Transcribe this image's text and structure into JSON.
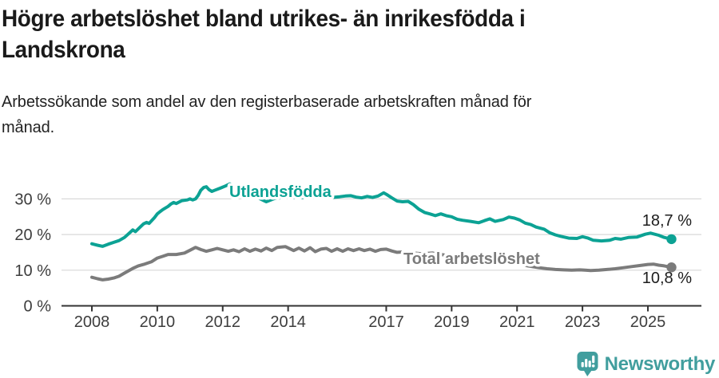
{
  "header": {
    "title_lines": [
      "Högre arbetslöshet bland utrikes- än inrikesfödda i",
      "Landskrona"
    ],
    "subtitle_lines": [
      "Arbetssökande som andel av den registerbaserade arbetskraften månad för",
      "månad."
    ]
  },
  "footer": {
    "brand": "Newsworthy",
    "logo_icon": "bar-chart-speech-bubble-icon",
    "brand_color": "#419e9e"
  },
  "colors": {
    "grid": "#d9d9d9",
    "axis": "#333333",
    "tick_text": "#3d3d3d",
    "value_label_text": "#1c1c1c",
    "title_text": "#1a1a1a"
  },
  "chart_data": {
    "type": "line",
    "title": "Högre arbetslöshet bland utrikes- än inrikesfödda i Landskrona",
    "subtitle": "Arbetssökande som andel av den registerbaserade arbetskraften månad för månad.",
    "x_unit": "decimal_year",
    "x_range": [
      2007.1,
      2026.6
    ],
    "ylim": [
      0,
      36
    ],
    "grid": "horizontal",
    "legend": "inline-labels",
    "y_ticks": [
      {
        "value": 0,
        "label": "0 %"
      },
      {
        "value": 10,
        "label": "10 %"
      },
      {
        "value": 20,
        "label": "20 %"
      },
      {
        "value": 30,
        "label": "30 %"
      }
    ],
    "x_ticks": [
      {
        "value": 2008,
        "label": "2008"
      },
      {
        "value": 2010,
        "label": "2010"
      },
      {
        "value": 2012,
        "label": "2012"
      },
      {
        "value": 2014,
        "label": "2014"
      },
      {
        "value": 2017,
        "label": "2017"
      },
      {
        "value": 2019,
        "label": "2019"
      },
      {
        "value": 2021,
        "label": "2021"
      },
      {
        "value": 2023,
        "label": "2023"
      },
      {
        "value": 2025,
        "label": "2025"
      }
    ],
    "series": [
      {
        "name": "Utlandsfödda",
        "color": "#0ca294",
        "end_value": 18.7,
        "end_value_label": "18,7 %",
        "points": [
          [
            2008.0,
            17.4
          ],
          [
            2008.08,
            17.2
          ],
          [
            2008.17,
            17.0
          ],
          [
            2008.33,
            16.7
          ],
          [
            2008.5,
            17.3
          ],
          [
            2008.67,
            17.8
          ],
          [
            2008.83,
            18.3
          ],
          [
            2009.0,
            19.2
          ],
          [
            2009.17,
            20.6
          ],
          [
            2009.25,
            21.3
          ],
          [
            2009.33,
            20.8
          ],
          [
            2009.5,
            22.3
          ],
          [
            2009.58,
            23.0
          ],
          [
            2009.67,
            23.4
          ],
          [
            2009.75,
            23.1
          ],
          [
            2009.92,
            24.8
          ],
          [
            2010.0,
            25.8
          ],
          [
            2010.08,
            26.4
          ],
          [
            2010.17,
            27.0
          ],
          [
            2010.33,
            27.9
          ],
          [
            2010.42,
            28.6
          ],
          [
            2010.5,
            29.0
          ],
          [
            2010.58,
            28.7
          ],
          [
            2010.75,
            29.5
          ],
          [
            2010.92,
            29.7
          ],
          [
            2011.0,
            30.0
          ],
          [
            2011.08,
            29.7
          ],
          [
            2011.17,
            30.0
          ],
          [
            2011.25,
            31.0
          ],
          [
            2011.33,
            32.4
          ],
          [
            2011.42,
            33.2
          ],
          [
            2011.5,
            33.4
          ],
          [
            2011.58,
            32.6
          ],
          [
            2011.67,
            32.1
          ],
          [
            2011.75,
            32.4
          ],
          [
            2011.92,
            33.0
          ],
          [
            2012.08,
            33.6
          ],
          [
            2012.22,
            34.2
          ],
          [
            2012.33,
            33.5
          ],
          [
            2012.42,
            33.0
          ],
          [
            2012.58,
            32.4
          ],
          [
            2012.75,
            31.8
          ],
          [
            2012.92,
            31.2
          ],
          [
            2013.08,
            30.3
          ],
          [
            2013.33,
            29.2
          ],
          [
            2013.58,
            30.1
          ],
          [
            2013.83,
            30.4
          ],
          [
            2014.08,
            30.5
          ],
          [
            2014.33,
            30.3
          ],
          [
            2014.58,
            30.5
          ],
          [
            2014.83,
            30.4
          ],
          [
            2015.08,
            30.6
          ],
          [
            2015.33,
            30.4
          ],
          [
            2015.58,
            30.6
          ],
          [
            2015.75,
            30.8
          ],
          [
            2015.92,
            30.9
          ],
          [
            2016.08,
            30.5
          ],
          [
            2016.25,
            30.3
          ],
          [
            2016.42,
            30.7
          ],
          [
            2016.58,
            30.4
          ],
          [
            2016.75,
            30.8
          ],
          [
            2016.92,
            31.7
          ],
          [
            2017.0,
            31.3
          ],
          [
            2017.17,
            30.3
          ],
          [
            2017.33,
            29.4
          ],
          [
            2017.5,
            29.2
          ],
          [
            2017.67,
            29.3
          ],
          [
            2017.83,
            28.4
          ],
          [
            2018.0,
            27.1
          ],
          [
            2018.17,
            26.2
          ],
          [
            2018.33,
            25.8
          ],
          [
            2018.5,
            25.3
          ],
          [
            2018.67,
            25.8
          ],
          [
            2018.83,
            25.3
          ],
          [
            2019.0,
            25.0
          ],
          [
            2019.17,
            24.3
          ],
          [
            2019.33,
            24.0
          ],
          [
            2019.58,
            23.7
          ],
          [
            2019.83,
            23.3
          ],
          [
            2020.0,
            23.9
          ],
          [
            2020.17,
            24.4
          ],
          [
            2020.33,
            23.7
          ],
          [
            2020.58,
            24.2
          ],
          [
            2020.75,
            24.9
          ],
          [
            2020.92,
            24.6
          ],
          [
            2021.08,
            24.1
          ],
          [
            2021.25,
            23.2
          ],
          [
            2021.42,
            22.8
          ],
          [
            2021.58,
            22.1
          ],
          [
            2021.83,
            21.5
          ],
          [
            2022.0,
            20.5
          ],
          [
            2022.17,
            19.9
          ],
          [
            2022.33,
            19.5
          ],
          [
            2022.58,
            19.0
          ],
          [
            2022.83,
            18.9
          ],
          [
            2023.0,
            19.4
          ],
          [
            2023.17,
            19.0
          ],
          [
            2023.33,
            18.4
          ],
          [
            2023.58,
            18.2
          ],
          [
            2023.83,
            18.4
          ],
          [
            2024.0,
            18.9
          ],
          [
            2024.17,
            18.7
          ],
          [
            2024.42,
            19.2
          ],
          [
            2024.67,
            19.3
          ],
          [
            2024.92,
            20.1
          ],
          [
            2025.08,
            20.4
          ],
          [
            2025.33,
            19.8
          ],
          [
            2025.5,
            19.2
          ],
          [
            2025.72,
            18.7
          ]
        ]
      },
      {
        "name": "Total arbetslöshet",
        "color": "#7b7b7b",
        "end_value": 10.8,
        "end_value_label": "10,8 %",
        "points": [
          [
            2008.0,
            8.0
          ],
          [
            2008.17,
            7.6
          ],
          [
            2008.33,
            7.3
          ],
          [
            2008.5,
            7.5
          ],
          [
            2008.67,
            7.8
          ],
          [
            2008.83,
            8.3
          ],
          [
            2009.0,
            9.2
          ],
          [
            2009.25,
            10.5
          ],
          [
            2009.42,
            11.2
          ],
          [
            2009.58,
            11.6
          ],
          [
            2009.83,
            12.4
          ],
          [
            2010.0,
            13.4
          ],
          [
            2010.17,
            13.9
          ],
          [
            2010.33,
            14.4
          ],
          [
            2010.58,
            14.4
          ],
          [
            2010.83,
            14.8
          ],
          [
            2011.0,
            15.6
          ],
          [
            2011.17,
            16.4
          ],
          [
            2011.33,
            15.8
          ],
          [
            2011.5,
            15.3
          ],
          [
            2011.67,
            15.7
          ],
          [
            2011.83,
            16.1
          ],
          [
            2012.0,
            15.7
          ],
          [
            2012.17,
            15.3
          ],
          [
            2012.33,
            15.7
          ],
          [
            2012.5,
            15.2
          ],
          [
            2012.67,
            16.0
          ],
          [
            2012.83,
            15.3
          ],
          [
            2013.0,
            15.9
          ],
          [
            2013.17,
            15.4
          ],
          [
            2013.33,
            16.2
          ],
          [
            2013.5,
            15.5
          ],
          [
            2013.67,
            16.4
          ],
          [
            2013.92,
            16.6
          ],
          [
            2014.17,
            15.5
          ],
          [
            2014.33,
            16.2
          ],
          [
            2014.5,
            15.4
          ],
          [
            2014.67,
            16.3
          ],
          [
            2014.83,
            15.2
          ],
          [
            2015.0,
            15.9
          ],
          [
            2015.17,
            16.1
          ],
          [
            2015.33,
            15.3
          ],
          [
            2015.5,
            16.0
          ],
          [
            2015.67,
            15.3
          ],
          [
            2015.83,
            16.0
          ],
          [
            2016.0,
            15.5
          ],
          [
            2016.17,
            16.0
          ],
          [
            2016.33,
            15.5
          ],
          [
            2016.5,
            15.9
          ],
          [
            2016.67,
            15.3
          ],
          [
            2016.83,
            15.8
          ],
          [
            2017.0,
            15.9
          ],
          [
            2017.17,
            15.4
          ],
          [
            2017.33,
            15.0
          ],
          [
            2017.5,
            15.1
          ],
          [
            2017.75,
            14.9
          ],
          [
            2018.08,
            14.6
          ],
          [
            2018.42,
            14.8
          ],
          [
            2018.75,
            14.3
          ],
          [
            2019.08,
            13.5
          ],
          [
            2019.42,
            13.0
          ],
          [
            2019.75,
            12.5
          ],
          [
            2020.08,
            12.3
          ],
          [
            2020.33,
            12.8
          ],
          [
            2020.67,
            12.4
          ],
          [
            2021.0,
            11.9
          ],
          [
            2021.33,
            11.2
          ],
          [
            2021.67,
            10.7
          ],
          [
            2021.92,
            10.4
          ],
          [
            2022.17,
            10.2
          ],
          [
            2022.42,
            10.1
          ],
          [
            2022.67,
            10.0
          ],
          [
            2022.92,
            10.1
          ],
          [
            2023.08,
            10.0
          ],
          [
            2023.25,
            9.9
          ],
          [
            2023.5,
            10.0
          ],
          [
            2023.75,
            10.2
          ],
          [
            2024.0,
            10.4
          ],
          [
            2024.25,
            10.7
          ],
          [
            2024.5,
            11.0
          ],
          [
            2024.75,
            11.3
          ],
          [
            2025.0,
            11.6
          ],
          [
            2025.17,
            11.7
          ],
          [
            2025.33,
            11.4
          ],
          [
            2025.5,
            11.2
          ],
          [
            2025.72,
            10.8
          ]
        ]
      }
    ]
  }
}
